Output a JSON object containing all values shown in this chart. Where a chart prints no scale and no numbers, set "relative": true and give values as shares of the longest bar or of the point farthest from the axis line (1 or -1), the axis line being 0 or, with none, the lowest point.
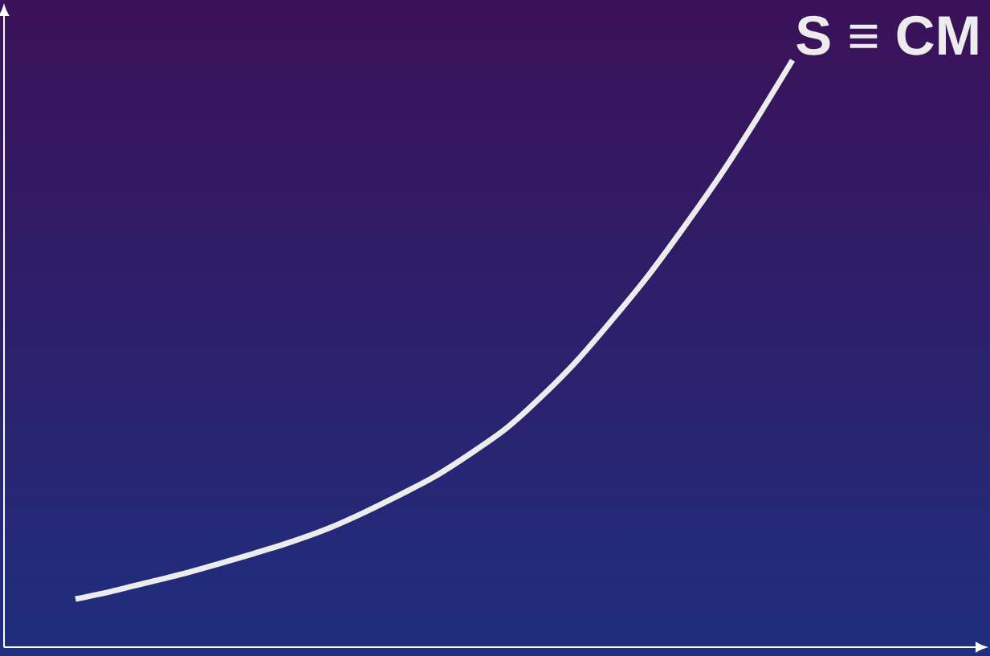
{
  "chart_data": {
    "type": "line",
    "relative": true,
    "categories": [
      null,
      null,
      null,
      null,
      null,
      null,
      null,
      null,
      null,
      null,
      null,
      null,
      null,
      null,
      null,
      null,
      null,
      null,
      null,
      null,
      null
    ],
    "series": [
      {
        "name": "S ≡ CM",
        "color": "#ececec",
        "values": [
          0.082,
          0.095,
          0.11,
          0.125,
          0.142,
          0.16,
          0.179,
          0.201,
          0.228,
          0.258,
          0.29,
          0.329,
          0.372,
          0.427,
          0.489,
          0.56,
          0.635,
          0.718,
          0.805,
          0.9,
          1.0
        ]
      }
    ],
    "line_style": "solid"
  }
}
